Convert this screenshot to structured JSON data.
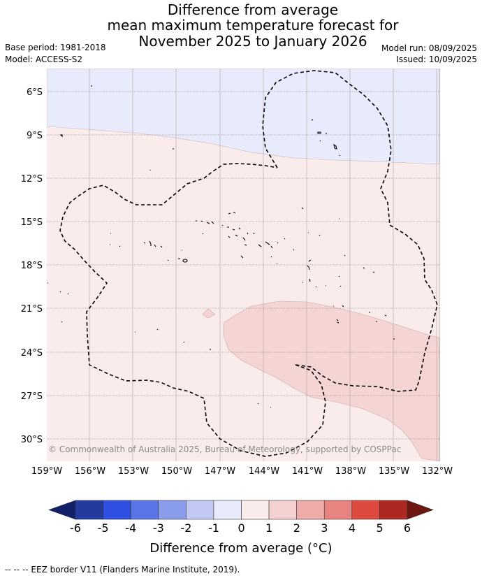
{
  "header": {
    "title_lines": [
      "Difference from average",
      "mean maximum temperature forecast for",
      "November 2025 to January 2026"
    ],
    "base_period": "Base period: 1981-2018",
    "model": "Model: ACCESS-S2",
    "model_run": "Model run: 08/09/2025",
    "issued": "Issued: 10/09/2025"
  },
  "map": {
    "lat_ticks": [
      "6°S",
      "9°S",
      "12°S",
      "15°S",
      "18°S",
      "21°S",
      "24°S",
      "27°S",
      "30°S"
    ],
    "lon_ticks": [
      "159°W",
      "156°W",
      "153°W",
      "150°W",
      "147°W",
      "144°W",
      "141°W",
      "138°W",
      "135°W",
      "132°W"
    ],
    "copyright": "© Commonwealth of Australia 2025, Bureau of Meteorology, supported by COSPPac",
    "colors": {
      "cool_band": "#e8ebfb",
      "warm_base": "#fbecec",
      "warm_blob": "#f5d4d4",
      "grid": "#b9aaaa"
    }
  },
  "colorbar": {
    "ticks": [
      "-6",
      "-5",
      "-4",
      "-3",
      "-2",
      "-1",
      "0",
      "1",
      "2",
      "3",
      "4",
      "5",
      "6"
    ],
    "label": "Difference from average (°C)",
    "colors": [
      "#233b9e",
      "#2f4fe0",
      "#5a76e6",
      "#8a9ded",
      "#c3c9f5",
      "#e8ebfb",
      "#fbecec",
      "#f4d2d2",
      "#efaaaa",
      "#e88480",
      "#df4a40",
      "#ad2820"
    ],
    "low_extension_color": "#112069",
    "high_extension_color": "#6e1612"
  },
  "footer": {
    "legend_text": "-- -- -- EEZ border V11 (Flanders Marine Institute, 2019)."
  }
}
